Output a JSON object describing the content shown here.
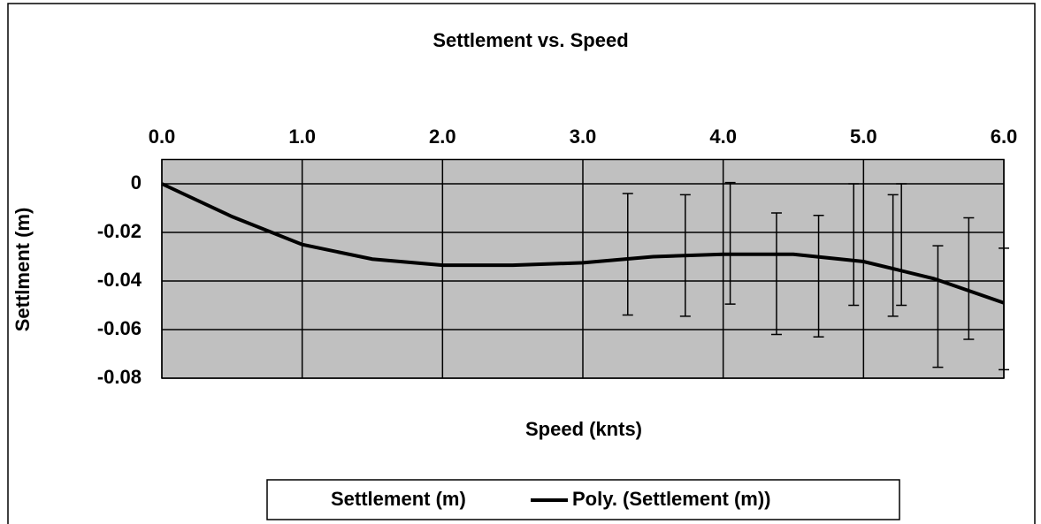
{
  "chart_data": {
    "type": "scatter",
    "title": "Settlement vs. Speed",
    "x_label": "Speed (knts)",
    "y_label": "Settlment (m)",
    "xlim": [
      0,
      6
    ],
    "ylim": [
      -0.08,
      0.01
    ],
    "xticks": [
      {
        "value": 0,
        "label": "0.0"
      },
      {
        "value": 1,
        "label": "1.0"
      },
      {
        "value": 2,
        "label": "2.0"
      },
      {
        "value": 3,
        "label": "3.0"
      },
      {
        "value": 4,
        "label": "4.0"
      },
      {
        "value": 5,
        "label": "5.0"
      },
      {
        "value": 6,
        "label": "6.0"
      }
    ],
    "yticks": [
      0,
      -0.02,
      -0.04,
      -0.06,
      -0.08
    ],
    "grid": true,
    "plot_background": "#c0c0c0",
    "series": [
      {
        "name": "Settlement (m)",
        "color": "#000000",
        "x": [
          3.32,
          3.73,
          4.05,
          4.38,
          4.68,
          4.93,
          5.21,
          5.27,
          5.53,
          5.75,
          6.0
        ],
        "values": [
          -0.029,
          -0.0295,
          -0.0245,
          -0.037,
          -0.038,
          -0.025,
          -0.0295,
          -0.025,
          -0.0505,
          -0.039,
          -0.0515
        ],
        "errors": [
          0.025,
          0.025,
          0.025,
          0.025,
          0.025,
          0.025,
          0.025,
          0.025,
          0.025,
          0.025,
          0.025
        ]
      },
      {
        "name": "Poly. (Settlement (m))",
        "color": "#000000",
        "trendline": true,
        "x": [
          0,
          0.5,
          1,
          1.5,
          2,
          2.5,
          3,
          3.5,
          4,
          4.5,
          5,
          5.5,
          6
        ],
        "values": [
          0,
          -0.0135,
          -0.025,
          -0.031,
          -0.0335,
          -0.0335,
          -0.0325,
          -0.03,
          -0.029,
          -0.029,
          -0.032,
          -0.039,
          -0.049
        ]
      }
    ]
  }
}
